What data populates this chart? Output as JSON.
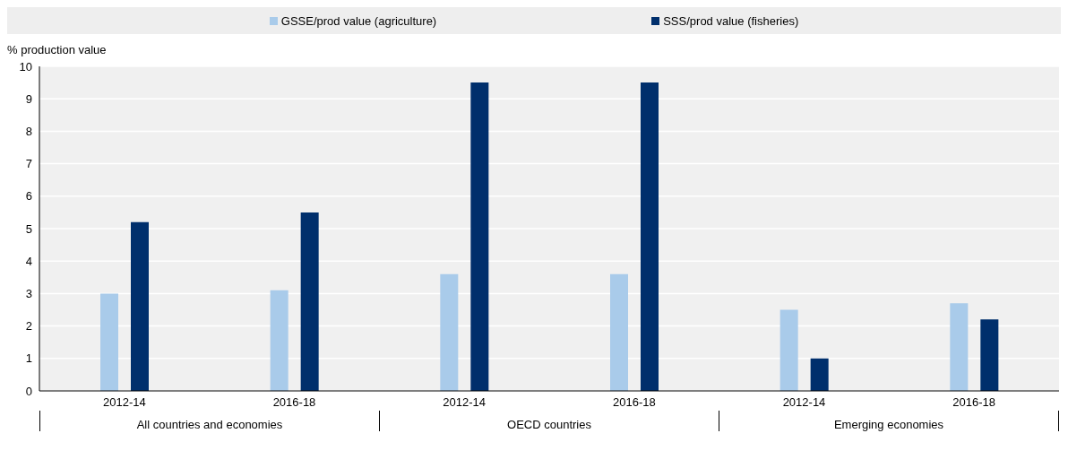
{
  "chart_data": {
    "type": "bar",
    "ylabel": "% production value",
    "categories": [
      "2012-14",
      "2016-18",
      "2012-14",
      "2016-18",
      "2012-14",
      "2016-18"
    ],
    "series": [
      {
        "name": "GSSE/prod value (agriculture)",
        "color": "#a9cbea",
        "values": [
          3.0,
          3.1,
          3.6,
          3.6,
          2.5,
          2.7
        ]
      },
      {
        "name": "SSS/prod value (fisheries)",
        "color": "#002f6c",
        "values": [
          5.2,
          5.5,
          9.5,
          9.5,
          1.0,
          2.2
        ]
      }
    ],
    "annotations": [
      "All countries and economies",
      "OECD countries",
      "Emerging economies"
    ],
    "ylim": [
      0,
      10
    ],
    "yticks": [
      0,
      1,
      2,
      3,
      4,
      5,
      6,
      7,
      8,
      9,
      10
    ],
    "grid": "y",
    "legend": "top"
  }
}
